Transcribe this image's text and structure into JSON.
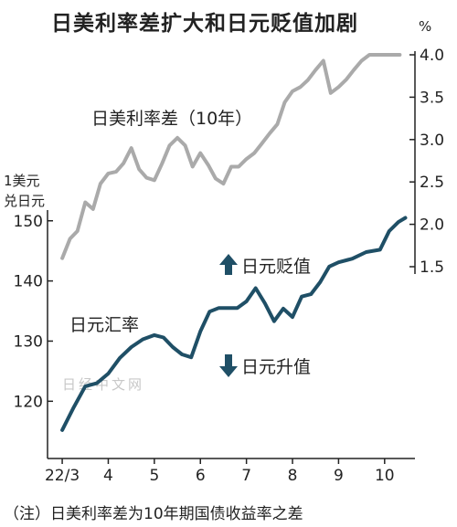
{
  "title": "日美利率差扩大和日元贬值加剧",
  "footnote": "（注）日美利率差为10年期国债收益率之差",
  "watermark": "日经中文网",
  "colors": {
    "spread_line": "#aaaaaa",
    "fx_line": "#1f4f66",
    "arrow": "#1f4f66",
    "axis": "#222222"
  },
  "chart_data": {
    "type": "line",
    "x_tick_labels": [
      "22/3",
      "4",
      "5",
      "6",
      "7",
      "8",
      "9",
      "10"
    ],
    "x_tick_positions": [
      0,
      1,
      2,
      3,
      4,
      5,
      6,
      7
    ],
    "x_range": [
      -0.2,
      7.5
    ],
    "left_axis": {
      "unit_line1": "1美元",
      "unit_line2": "兑日元",
      "ylim": [
        112,
        153
      ],
      "ticks": [
        120,
        130,
        140,
        150
      ]
    },
    "right_axis": {
      "unit": "%",
      "ylim": [
        1.5,
        4.0
      ],
      "ticks": [
        "1.5",
        "2.0",
        "2.5",
        "3.0",
        "3.5",
        "4.0"
      ]
    },
    "series": [
      {
        "name": "日美利率差（10年）",
        "axis": "right",
        "x": [
          0,
          0.17,
          0.33,
          0.5,
          0.67,
          0.83,
          1.0,
          1.17,
          1.33,
          1.5,
          1.67,
          1.83,
          2.0,
          2.17,
          2.33,
          2.5,
          2.67,
          2.83,
          3.0,
          3.17,
          3.33,
          3.5,
          3.67,
          3.83,
          4.0,
          4.17,
          4.33,
          4.5,
          4.67,
          4.83,
          5.0,
          5.17,
          5.33,
          5.5,
          5.67,
          5.83,
          6.0,
          6.17,
          6.33,
          6.5,
          6.67,
          6.83,
          7.0,
          7.17,
          7.33
        ],
        "values": [
          1.6,
          1.83,
          1.92,
          2.26,
          2.18,
          2.48,
          2.6,
          2.62,
          2.72,
          2.9,
          2.65,
          2.55,
          2.52,
          2.72,
          2.93,
          3.02,
          2.93,
          2.68,
          2.84,
          2.7,
          2.54,
          2.48,
          2.68,
          2.68,
          2.77,
          2.84,
          2.95,
          3.07,
          3.18,
          3.44,
          3.57,
          3.62,
          3.7,
          3.82,
          3.93,
          3.55,
          3.62,
          3.71,
          3.82,
          3.93,
          4.0,
          4.0,
          4.0,
          4.0,
          4.0
        ]
      },
      {
        "name": "日元汇率",
        "axis": "left",
        "x": [
          0,
          0.25,
          0.5,
          0.75,
          1.0,
          1.25,
          1.5,
          1.75,
          2.0,
          2.2,
          2.4,
          2.6,
          2.8,
          3.0,
          3.2,
          3.4,
          3.6,
          3.8,
          4.0,
          4.2,
          4.4,
          4.6,
          4.8,
          5.0,
          5.2,
          5.4,
          5.6,
          5.8,
          6.0,
          6.3,
          6.6,
          6.9,
          7.1,
          7.3,
          7.45
        ],
        "values": [
          115.2,
          119.0,
          122.5,
          123.0,
          124.6,
          127.2,
          129.0,
          130.3,
          131.0,
          130.6,
          129.0,
          127.8,
          127.3,
          131.6,
          134.9,
          135.5,
          135.5,
          135.5,
          136.6,
          138.8,
          136.3,
          133.3,
          135.4,
          134.0,
          137.4,
          137.8,
          139.8,
          142.4,
          143.1,
          143.7,
          144.8,
          145.2,
          148.3,
          149.8,
          150.5
        ]
      }
    ],
    "annotations": [
      {
        "text": "日元贬值",
        "arrow": "up"
      },
      {
        "text": "日元升值",
        "arrow": "down"
      }
    ]
  }
}
